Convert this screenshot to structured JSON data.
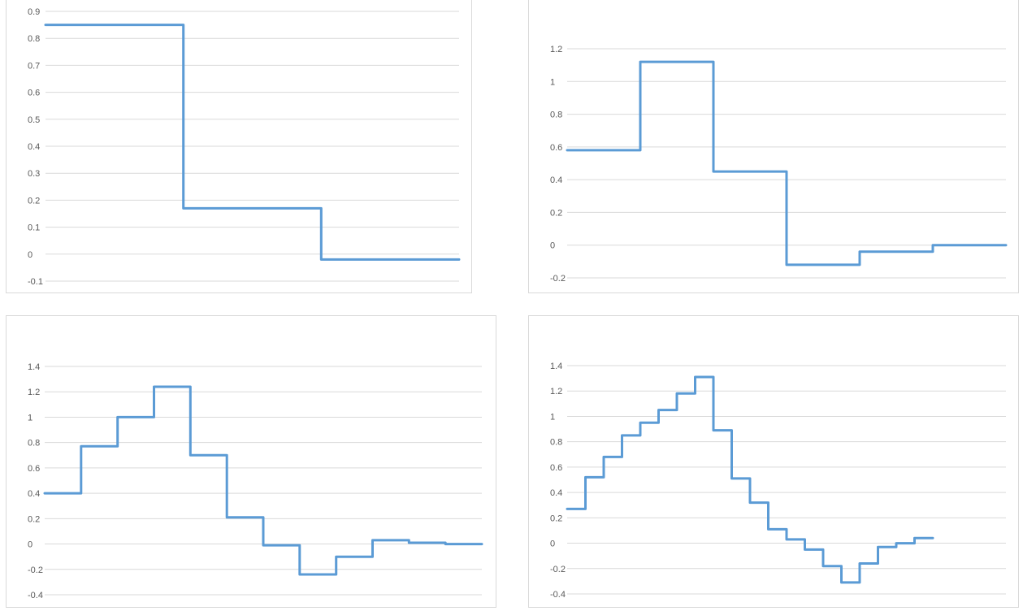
{
  "colors": {
    "line": "#5b9bd5",
    "grid": "#d9d9d9",
    "tick_text": "#595959",
    "border": "#d9d9d9"
  },
  "chart_data": [
    {
      "type": "line",
      "title": "",
      "xlabel": "",
      "ylabel": "",
      "ylim": [
        -0.1,
        0.9
      ],
      "yticks": [
        -0.1,
        0,
        0.1,
        0.2,
        0.3,
        0.4,
        0.5,
        0.6,
        0.7,
        0.8,
        0.9
      ],
      "ytick_labels": [
        "-0.1",
        "0",
        "0.1",
        "0.2",
        "0.3",
        "0.4",
        "0.5",
        "0.6",
        "0.7",
        "0.8",
        "0.9"
      ],
      "grid": true,
      "legend": "none",
      "series": [
        {
          "values": [
            0.85,
            0.17,
            -0.02
          ]
        }
      ]
    },
    {
      "type": "line",
      "title": "",
      "xlabel": "",
      "ylabel": "",
      "ylim": [
        -0.2,
        1.2
      ],
      "yticks": [
        -0.2,
        0,
        0.2,
        0.4,
        0.6,
        0.8,
        1.0,
        1.2
      ],
      "ytick_labels": [
        "-0.2",
        "0",
        "0.2",
        "0.4",
        "0.6",
        "0.8",
        "1",
        "1.2"
      ],
      "grid": true,
      "legend": "none",
      "series": [
        {
          "values": [
            0.58,
            1.12,
            0.45,
            -0.12,
            -0.04,
            0.0
          ]
        }
      ]
    },
    {
      "type": "line",
      "title": "",
      "xlabel": "",
      "ylabel": "",
      "ylim": [
        -0.4,
        1.4
      ],
      "yticks": [
        -0.4,
        -0.2,
        0,
        0.2,
        0.4,
        0.6,
        0.8,
        1.0,
        1.2,
        1.4
      ],
      "ytick_labels": [
        "-0.4",
        "-0.2",
        "0",
        "0.2",
        "0.4",
        "0.6",
        "0.8",
        "1",
        "1.2",
        "1.4"
      ],
      "grid": true,
      "legend": "none",
      "series": [
        {
          "values": [
            0.4,
            0.77,
            1.0,
            1.24,
            0.7,
            0.21,
            -0.01,
            -0.24,
            -0.1,
            0.03,
            0.01,
            0.0
          ]
        }
      ]
    },
    {
      "type": "line",
      "title": "",
      "xlabel": "",
      "ylabel": "",
      "ylim": [
        -0.4,
        1.4
      ],
      "yticks": [
        -0.4,
        -0.2,
        0,
        0.2,
        0.4,
        0.6,
        0.8,
        1.0,
        1.2,
        1.4
      ],
      "ytick_labels": [
        "-0.4",
        "-0.2",
        "0",
        "0.2",
        "0.4",
        "0.6",
        "0.8",
        "1",
        "1.2",
        "1.4"
      ],
      "grid": true,
      "legend": "none",
      "series": [
        {
          "values": [
            0.27,
            0.52,
            0.68,
            0.85,
            0.95,
            1.05,
            1.18,
            1.31,
            0.89,
            0.51,
            0.32,
            0.11,
            0.03,
            -0.05,
            -0.18,
            -0.31,
            -0.16,
            -0.03,
            0.0,
            0.04
          ]
        }
      ]
    }
  ]
}
